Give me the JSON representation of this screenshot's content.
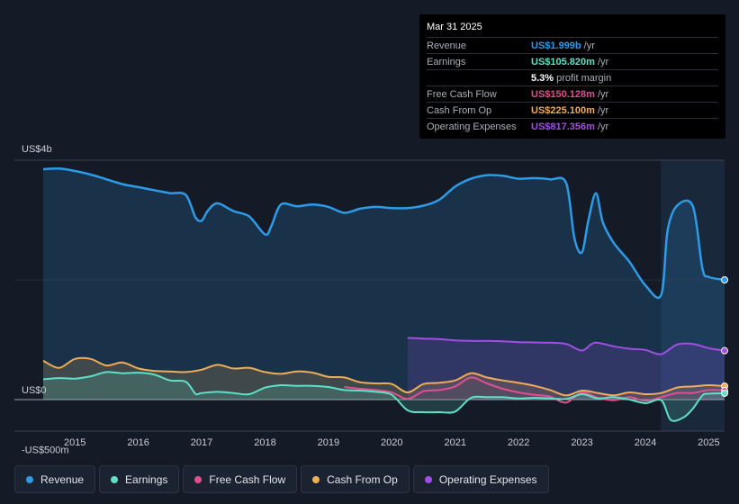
{
  "tooltip": {
    "date": "Mar 31 2025",
    "rows": [
      {
        "label": "Revenue",
        "value": "US$1.999b",
        "unit": "/yr",
        "color": "#2d9be8"
      },
      {
        "label": "Earnings",
        "value": "US$105.820m",
        "unit": "/yr",
        "color": "#5fe0c8"
      },
      {
        "label": "",
        "value": "5.3%",
        "unit": "profit margin",
        "color": "#ffffff"
      },
      {
        "label": "Free Cash Flow",
        "value": "US$150.128m",
        "unit": "/yr",
        "color": "#e0508f"
      },
      {
        "label": "Cash From Op",
        "value": "US$225.100m",
        "unit": "/yr",
        "color": "#f0ad55"
      },
      {
        "label": "Operating Expenses",
        "value": "US$817.356m",
        "unit": "/yr",
        "color": "#a24ee6"
      }
    ]
  },
  "legend": [
    {
      "label": "Revenue",
      "color": "#2d9be8"
    },
    {
      "label": "Earnings",
      "color": "#5fe0c8"
    },
    {
      "label": "Free Cash Flow",
      "color": "#e0508f"
    },
    {
      "label": "Cash From Op",
      "color": "#f0ad55"
    },
    {
      "label": "Operating Expenses",
      "color": "#a24ee6"
    }
  ],
  "chart_data": {
    "type": "area",
    "title": "",
    "xlabel": "",
    "ylabel": "",
    "unit": "US$m",
    "y_tick_labels": [
      {
        "value": 4000,
        "label": "US$4b"
      },
      {
        "value": 0,
        "label": "US$0"
      },
      {
        "value": -500,
        "label": "-US$500m"
      }
    ],
    "x_tick_labels": [
      "2015",
      "2016",
      "2017",
      "2018",
      "2019",
      "2020",
      "2021",
      "2022",
      "2023",
      "2024",
      "2025"
    ],
    "xlim": [
      2014.5,
      2025.25
    ],
    "ylim": [
      -500,
      4000
    ],
    "grid": true,
    "legend_position": "bottom",
    "highlight_start": 2024.25,
    "series": [
      {
        "name": "Revenue",
        "color": "#2d9be8",
        "fill": true,
        "points": [
          [
            2014.5,
            3850
          ],
          [
            2014.75,
            3860
          ],
          [
            2015.0,
            3820
          ],
          [
            2015.25,
            3760
          ],
          [
            2015.5,
            3680
          ],
          [
            2015.75,
            3600
          ],
          [
            2016.0,
            3550
          ],
          [
            2016.25,
            3500
          ],
          [
            2016.5,
            3450
          ],
          [
            2016.75,
            3420
          ],
          [
            2016.9,
            3050
          ],
          [
            2017.0,
            2990
          ],
          [
            2017.1,
            3160
          ],
          [
            2017.25,
            3280
          ],
          [
            2017.5,
            3150
          ],
          [
            2017.75,
            3060
          ],
          [
            2018.0,
            2760
          ],
          [
            2018.1,
            2900
          ],
          [
            2018.25,
            3260
          ],
          [
            2018.5,
            3230
          ],
          [
            2018.75,
            3260
          ],
          [
            2019.0,
            3220
          ],
          [
            2019.25,
            3120
          ],
          [
            2019.5,
            3190
          ],
          [
            2019.75,
            3220
          ],
          [
            2020.0,
            3200
          ],
          [
            2020.25,
            3200
          ],
          [
            2020.5,
            3240
          ],
          [
            2020.75,
            3340
          ],
          [
            2021.0,
            3560
          ],
          [
            2021.25,
            3690
          ],
          [
            2021.5,
            3750
          ],
          [
            2021.75,
            3740
          ],
          [
            2022.0,
            3690
          ],
          [
            2022.25,
            3700
          ],
          [
            2022.5,
            3680
          ],
          [
            2022.75,
            3620
          ],
          [
            2022.88,
            2700
          ],
          [
            2023.0,
            2460
          ],
          [
            2023.1,
            2990
          ],
          [
            2023.22,
            3450
          ],
          [
            2023.33,
            2960
          ],
          [
            2023.5,
            2620
          ],
          [
            2023.75,
            2300
          ],
          [
            2024.0,
            1910
          ],
          [
            2024.25,
            1750
          ],
          [
            2024.35,
            2820
          ],
          [
            2024.5,
            3240
          ],
          [
            2024.75,
            3230
          ],
          [
            2024.9,
            2190
          ],
          [
            2025.0,
            2050
          ],
          [
            2025.25,
            2000
          ]
        ]
      },
      {
        "name": "Operating Expenses",
        "color": "#a24ee6",
        "fill": true,
        "points": [
          [
            2020.25,
            1030
          ],
          [
            2020.5,
            1020
          ],
          [
            2020.75,
            1010
          ],
          [
            2021.0,
            990
          ],
          [
            2021.25,
            980
          ],
          [
            2021.5,
            980
          ],
          [
            2021.75,
            975
          ],
          [
            2022.0,
            960
          ],
          [
            2022.25,
            955
          ],
          [
            2022.5,
            950
          ],
          [
            2022.75,
            930
          ],
          [
            2023.0,
            820
          ],
          [
            2023.2,
            950
          ],
          [
            2023.5,
            890
          ],
          [
            2023.75,
            850
          ],
          [
            2024.0,
            830
          ],
          [
            2024.25,
            760
          ],
          [
            2024.5,
            920
          ],
          [
            2024.75,
            930
          ],
          [
            2025.0,
            860
          ],
          [
            2025.25,
            817
          ]
        ]
      },
      {
        "name": "Cash From Op",
        "color": "#f0ad55",
        "fill": true,
        "points": [
          [
            2014.5,
            650
          ],
          [
            2014.75,
            530
          ],
          [
            2015.0,
            680
          ],
          [
            2015.25,
            680
          ],
          [
            2015.5,
            570
          ],
          [
            2015.75,
            620
          ],
          [
            2016.0,
            520
          ],
          [
            2016.25,
            480
          ],
          [
            2016.5,
            470
          ],
          [
            2016.75,
            460
          ],
          [
            2017.0,
            500
          ],
          [
            2017.25,
            580
          ],
          [
            2017.5,
            520
          ],
          [
            2017.75,
            530
          ],
          [
            2018.0,
            460
          ],
          [
            2018.25,
            430
          ],
          [
            2018.5,
            470
          ],
          [
            2018.75,
            450
          ],
          [
            2019.0,
            380
          ],
          [
            2019.25,
            370
          ],
          [
            2019.5,
            290
          ],
          [
            2019.75,
            270
          ],
          [
            2020.0,
            260
          ],
          [
            2020.25,
            120
          ],
          [
            2020.5,
            260
          ],
          [
            2020.75,
            280
          ],
          [
            2021.0,
            320
          ],
          [
            2021.25,
            440
          ],
          [
            2021.5,
            370
          ],
          [
            2021.75,
            320
          ],
          [
            2022.0,
            280
          ],
          [
            2022.25,
            230
          ],
          [
            2022.5,
            160
          ],
          [
            2022.75,
            70
          ],
          [
            2023.0,
            150
          ],
          [
            2023.25,
            110
          ],
          [
            2023.5,
            70
          ],
          [
            2023.75,
            120
          ],
          [
            2024.0,
            90
          ],
          [
            2024.25,
            110
          ],
          [
            2024.5,
            200
          ],
          [
            2024.75,
            220
          ],
          [
            2025.0,
            240
          ],
          [
            2025.25,
            225
          ]
        ]
      },
      {
        "name": "Free Cash Flow",
        "color": "#e0508f",
        "fill": false,
        "points": [
          [
            2019.25,
            210
          ],
          [
            2019.5,
            180
          ],
          [
            2019.75,
            160
          ],
          [
            2020.0,
            120
          ],
          [
            2020.25,
            10
          ],
          [
            2020.5,
            140
          ],
          [
            2020.75,
            160
          ],
          [
            2021.0,
            220
          ],
          [
            2021.25,
            370
          ],
          [
            2021.5,
            270
          ],
          [
            2021.75,
            180
          ],
          [
            2022.0,
            120
          ],
          [
            2022.25,
            80
          ],
          [
            2022.5,
            50
          ],
          [
            2022.75,
            -50
          ],
          [
            2023.0,
            120
          ],
          [
            2023.25,
            30
          ],
          [
            2023.5,
            -10
          ],
          [
            2023.75,
            40
          ],
          [
            2024.0,
            -20
          ],
          [
            2024.25,
            40
          ],
          [
            2024.5,
            110
          ],
          [
            2024.75,
            110
          ],
          [
            2025.0,
            160
          ],
          [
            2025.25,
            150
          ]
        ]
      },
      {
        "name": "Earnings",
        "color": "#5fe0c8",
        "fill": true,
        "points": [
          [
            2014.5,
            340
          ],
          [
            2014.75,
            360
          ],
          [
            2015.0,
            350
          ],
          [
            2015.25,
            390
          ],
          [
            2015.5,
            460
          ],
          [
            2015.75,
            440
          ],
          [
            2016.0,
            450
          ],
          [
            2016.25,
            420
          ],
          [
            2016.5,
            320
          ],
          [
            2016.75,
            300
          ],
          [
            2016.9,
            100
          ],
          [
            2017.0,
            110
          ],
          [
            2017.25,
            130
          ],
          [
            2017.5,
            110
          ],
          [
            2017.75,
            90
          ],
          [
            2018.0,
            200
          ],
          [
            2018.25,
            240
          ],
          [
            2018.5,
            230
          ],
          [
            2018.75,
            230
          ],
          [
            2019.0,
            210
          ],
          [
            2019.25,
            160
          ],
          [
            2019.5,
            150
          ],
          [
            2019.75,
            130
          ],
          [
            2020.0,
            80
          ],
          [
            2020.25,
            -180
          ],
          [
            2020.5,
            -210
          ],
          [
            2020.75,
            -210
          ],
          [
            2021.0,
            -200
          ],
          [
            2021.25,
            30
          ],
          [
            2021.5,
            40
          ],
          [
            2021.75,
            40
          ],
          [
            2022.0,
            20
          ],
          [
            2022.25,
            30
          ],
          [
            2022.5,
            20
          ],
          [
            2022.75,
            10
          ],
          [
            2023.0,
            90
          ],
          [
            2023.25,
            20
          ],
          [
            2023.5,
            40
          ],
          [
            2023.75,
            0
          ],
          [
            2024.0,
            -60
          ],
          [
            2024.25,
            -10
          ],
          [
            2024.4,
            -340
          ],
          [
            2024.6,
            -300
          ],
          [
            2024.75,
            -150
          ],
          [
            2024.9,
            70
          ],
          [
            2025.0,
            100
          ],
          [
            2025.25,
            106
          ]
        ]
      }
    ]
  }
}
